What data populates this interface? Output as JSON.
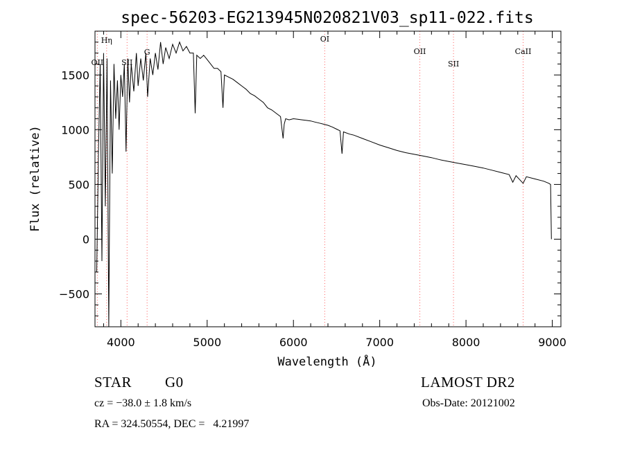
{
  "chart_data": {
    "type": "line",
    "title": "spec-56203-EG213945N020821V03_sp11-022.fits",
    "xlabel": "Wavelength (Å)",
    "ylabel": "Flux (relative)",
    "xlim": [
      3700,
      9100
    ],
    "ylim": [
      -800,
      1900
    ],
    "xticks": [
      4000,
      5000,
      6000,
      7000,
      8000,
      9000
    ],
    "xtick_labels": [
      "4000",
      "5000",
      "6000",
      "7000",
      "8000",
      "9000"
    ],
    "yticks": [
      -500,
      0,
      500,
      1000,
      1500
    ],
    "ytick_labels": [
      "−500",
      "0",
      "500",
      "1000",
      "1500"
    ],
    "grid": false,
    "line_color": "#000000",
    "marker_color": "#ff6060",
    "line_markers": [
      {
        "label": "OII",
        "x": 3727
      },
      {
        "label": "Hη",
        "x": 3835
      },
      {
        "label": "SII",
        "x": 4072
      },
      {
        "label": "G",
        "x": 4304
      },
      {
        "label": "OI",
        "x": 6363
      },
      {
        "label": "OII",
        "x": 7465
      },
      {
        "label": "SII",
        "x": 7855
      },
      {
        "label": "CaII",
        "x": 8662
      }
    ],
    "series": [
      {
        "x": [
          3720,
          3740,
          3760,
          3780,
          3800,
          3820,
          3840,
          3860,
          3880,
          3900,
          3920,
          3940,
          3960,
          3980,
          4000,
          4020,
          4040,
          4060,
          4080,
          4100,
          4120,
          4150,
          4180,
          4200,
          4230,
          4260,
          4290,
          4310,
          4340,
          4370,
          4400,
          4430,
          4460,
          4490,
          4520,
          4560,
          4600,
          4640,
          4680,
          4720,
          4760,
          4800,
          4840,
          4861,
          4880,
          4920,
          4960,
          5000,
          5040,
          5080,
          5120,
          5160,
          5183,
          5200,
          5250,
          5300,
          5350,
          5400,
          5450,
          5500,
          5550,
          5600,
          5650,
          5700,
          5750,
          5800,
          5850,
          5880,
          5893,
          5910,
          5950,
          6000,
          6050,
          6100,
          6150,
          6200,
          6250,
          6300,
          6350,
          6400,
          6450,
          6500,
          6540,
          6563,
          6580,
          6650,
          6700,
          6800,
          6900,
          7000,
          7100,
          7200,
          7300,
          7400,
          7500,
          7600,
          7700,
          7800,
          7900,
          8000,
          8100,
          8200,
          8300,
          8400,
          8500,
          8542,
          8580,
          8662,
          8700,
          8800,
          8900,
          8960,
          8980,
          8990
        ],
        "y": [
          -300,
          780,
          1600,
          -200,
          1700,
          300,
          1650,
          -800,
          1450,
          600,
          1600,
          1100,
          1450,
          1000,
          1500,
          1300,
          1600,
          800,
          1650,
          1250,
          1600,
          1350,
          1700,
          1400,
          1650,
          1450,
          1700,
          1300,
          1650,
          1500,
          1700,
          1550,
          1800,
          1600,
          1750,
          1650,
          1780,
          1700,
          1800,
          1720,
          1760,
          1700,
          1700,
          1150,
          1680,
          1650,
          1680,
          1640,
          1600,
          1560,
          1560,
          1530,
          1200,
          1500,
          1480,
          1460,
          1430,
          1400,
          1370,
          1330,
          1310,
          1280,
          1250,
          1200,
          1180,
          1150,
          1120,
          920,
          1050,
          1100,
          1090,
          1100,
          1095,
          1090,
          1085,
          1080,
          1070,
          1060,
          1050,
          1040,
          1025,
          1005,
          990,
          780,
          980,
          960,
          950,
          920,
          890,
          860,
          835,
          810,
          790,
          775,
          760,
          745,
          725,
          710,
          695,
          680,
          665,
          650,
          630,
          610,
          590,
          520,
          580,
          510,
          570,
          550,
          530,
          510,
          500,
          0
        ]
      }
    ]
  },
  "footer": {
    "object_class": "STAR",
    "subclass": "G0",
    "survey": "LAMOST DR2",
    "velocity": "cz = −38.0 ± 1.8 km/s",
    "obs_date": "Obs-Date: 20121002",
    "coords": "RA = 324.50554, DEC =   4.21997"
  }
}
